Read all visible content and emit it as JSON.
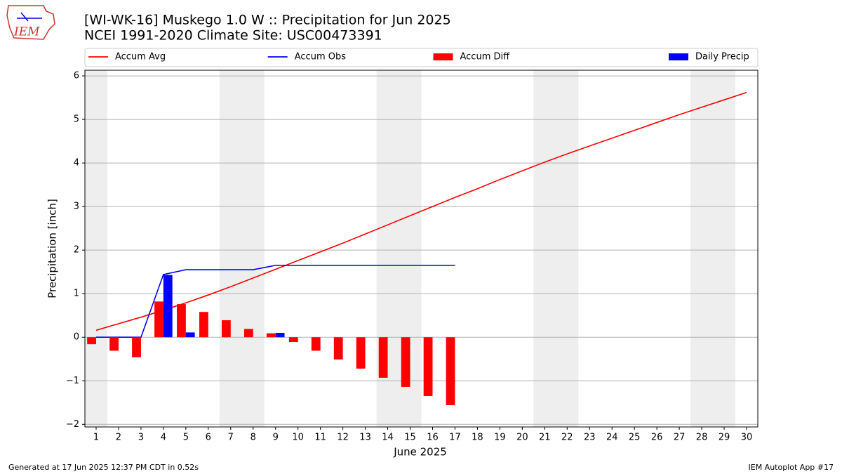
{
  "chart_data": {
    "type": "combo",
    "title": "[WI-WK-16] Muskego 1.0 W :: Precipitation for Jun 2025",
    "subtitle": "NCEI 1991-2020 Climate Site: USC00473391",
    "xlabel": "June 2025",
    "ylabel": "Precipitation [inch]",
    "footer_left": "Generated at 17 Jun 2025 12:37 PM CDT in 0.52s",
    "footer_right": "IEM Autoplot App #17",
    "logo_text": "IEM",
    "legend": "top",
    "grid": true,
    "weekend_spans": [
      [
        0.5,
        1.5
      ],
      [
        6.5,
        8.5
      ],
      [
        13.5,
        15.5
      ],
      [
        20.5,
        22.5
      ],
      [
        27.5,
        29.5
      ]
    ],
    "weekend_color": "#eeeeee",
    "x": [
      1,
      2,
      3,
      4,
      5,
      6,
      7,
      8,
      9,
      10,
      11,
      12,
      13,
      14,
      15,
      16,
      17,
      18,
      19,
      20,
      21,
      22,
      23,
      24,
      25,
      26,
      27,
      28,
      29,
      30
    ],
    "xlim": [
      0.5,
      30.5
    ],
    "xticks": [
      1,
      2,
      3,
      4,
      5,
      6,
      7,
      8,
      9,
      10,
      11,
      12,
      13,
      14,
      15,
      16,
      17,
      18,
      19,
      20,
      21,
      22,
      23,
      24,
      25,
      26,
      27,
      28,
      29,
      30
    ],
    "ylim": [
      -2.06,
      6.13
    ],
    "yticks": [
      {
        "value": -2,
        "label": "−2"
      },
      {
        "value": -1,
        "label": "−1"
      },
      0,
      1,
      2,
      3,
      4,
      5,
      6
    ],
    "series": [
      {
        "name": "Accum Avg",
        "type": "line",
        "color": "#ff0000",
        "values": [
          0.16,
          0.31,
          0.46,
          0.62,
          0.79,
          0.97,
          1.16,
          1.36,
          1.56,
          1.76,
          1.96,
          2.16,
          2.37,
          2.58,
          2.79,
          3.0,
          3.21,
          3.41,
          3.62,
          3.82,
          4.02,
          4.21,
          4.39,
          4.57,
          4.75,
          4.93,
          5.11,
          5.28,
          5.45,
          5.62
        ]
      },
      {
        "name": "Accum Obs",
        "type": "line",
        "color": "#0000ff",
        "values": [
          0,
          0,
          0,
          1.44,
          1.55,
          1.55,
          1.55,
          1.55,
          1.65,
          1.65,
          1.65,
          1.65,
          1.65,
          1.65,
          1.65,
          1.65,
          1.65,
          null,
          null,
          null,
          null,
          null,
          null,
          null,
          null,
          null,
          null,
          null,
          null,
          null
        ]
      },
      {
        "name": "Accum Diff",
        "type": "bar",
        "color": "#ff0000",
        "offset": -0.2,
        "width": 0.4,
        "values": [
          -0.16,
          -0.31,
          -0.46,
          0.82,
          0.76,
          0.58,
          0.39,
          0.19,
          0.09,
          -0.11,
          -0.31,
          -0.51,
          -0.72,
          -0.93,
          -1.14,
          -1.35,
          -1.56,
          null,
          null,
          null,
          null,
          null,
          null,
          null,
          null,
          null,
          null,
          null,
          null,
          null
        ]
      },
      {
        "name": "Daily Precip",
        "type": "bar",
        "color": "#0000ff",
        "offset": 0.2,
        "width": 0.4,
        "values": [
          0,
          0,
          0,
          1.43,
          0.11,
          0,
          0,
          0,
          0.1,
          0,
          0,
          0,
          0,
          0,
          0,
          0,
          0,
          null,
          null,
          null,
          null,
          null,
          null,
          null,
          null,
          null,
          null,
          null,
          null,
          null
        ]
      }
    ]
  }
}
